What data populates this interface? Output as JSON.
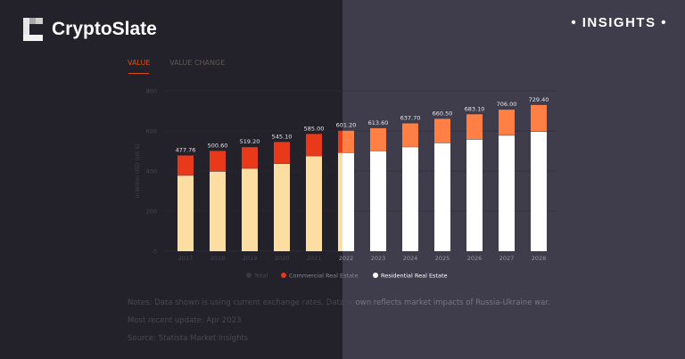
{
  "header": {
    "brand": "CryptoSlate",
    "badge": "• INSIGHTS •"
  },
  "tabs": [
    {
      "label": "VALUE",
      "active": true
    },
    {
      "label": "VALUE CHANGE",
      "active": false
    }
  ],
  "chart_data": {
    "type": "bar",
    "stacked": true,
    "ylabel": "in billion USD (US $)",
    "ylim": [
      0,
      800
    ],
    "yticks": [
      0,
      200,
      400,
      600,
      800
    ],
    "grid": true,
    "legend_position": "bottom",
    "categories": [
      "2017",
      "2018",
      "2019",
      "2020",
      "2021",
      "2022",
      "2023",
      "2024",
      "2025",
      "2026",
      "2027",
      "2028"
    ],
    "totals": [
      "477.76",
      "500.60",
      "519.20",
      "545.10",
      "585.00",
      "601.20",
      "613.60",
      "637.70",
      "660.50",
      "683.10",
      "706.00",
      "729.40"
    ],
    "series": [
      {
        "name": "Residential Real Estate",
        "values": [
          378,
          398,
          413,
          437,
          475,
          492,
          500,
          520,
          540,
          558,
          578,
          597
        ]
      },
      {
        "name": "Commercial Real Estate",
        "values": [
          99.76,
          102.6,
          106.2,
          108.1,
          110,
          109.2,
          113.6,
          117.7,
          120.5,
          125.1,
          128,
          132.4
        ]
      }
    ],
    "legend": [
      "Total",
      "Commercial Real Estate",
      "Residential Real Estate"
    ],
    "colors": {
      "residential_left": "#fcdda2",
      "commercial_left": "#e8391b",
      "residential_right": "#ffffff",
      "commercial_right": "#ff7f45"
    }
  },
  "notes": {
    "text_left": "Notes: Data shown is using current exchange rates. Data sh",
    "text_right": "own reflects market impacts of Russia-Ukraine war.",
    "update": "Most recent update: Apr 2023",
    "source": "Source: Statista Market Insights"
  }
}
